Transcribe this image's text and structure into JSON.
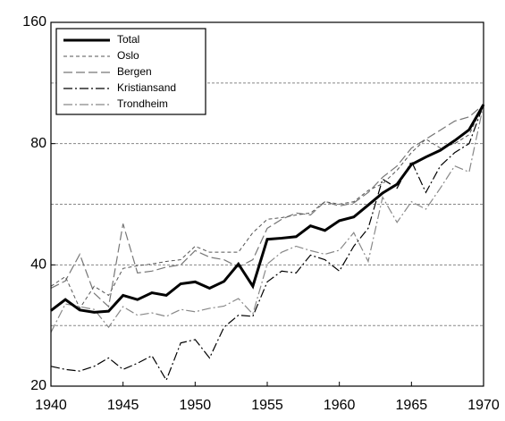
{
  "chart_data": {
    "type": "line",
    "x": [
      1940,
      1941,
      1942,
      1943,
      1944,
      1945,
      1946,
      1947,
      1948,
      1949,
      1950,
      1951,
      1952,
      1953,
      1954,
      1955,
      1956,
      1957,
      1958,
      1959,
      1960,
      1961,
      1962,
      1963,
      1964,
      1965,
      1966,
      1967,
      1968,
      1969,
      1970
    ],
    "series": [
      {
        "name": "Total",
        "color": "#000000",
        "style": "solid",
        "linewidth": 3,
        "values": [
          30.8,
          32.8,
          30.9,
          30.5,
          30.7,
          33.6,
          32.8,
          34.1,
          33.6,
          35.9,
          36.3,
          35.0,
          36.4,
          40.2,
          35.4,
          46.3,
          46.6,
          47.0,
          50.0,
          48.7,
          51.5,
          52.6,
          56.3,
          60.3,
          63.4,
          71.0,
          74.1,
          77.0,
          81.4,
          86.6,
          100
        ]
      },
      {
        "name": "Oslo",
        "color": "#555555",
        "style": "dash",
        "linewidth": 1,
        "values": [
          35.4,
          37.4,
          31.2,
          35.4,
          33.6,
          39.2,
          39.8,
          40.2,
          40.8,
          41.2,
          44.5,
          43.0,
          43.0,
          43.0,
          48.1,
          51.9,
          52.4,
          53.2,
          53.8,
          57.4,
          56.6,
          57.4,
          61.2,
          63.6,
          68.7,
          76.0,
          82.1,
          78.0,
          80.0,
          84.2,
          100
        ]
      },
      {
        "name": "Bergen",
        "color": "#777777",
        "style": "longdash",
        "linewidth": 1.2,
        "values": [
          35.0,
          36.5,
          42.5,
          34.0,
          31.5,
          50.6,
          38.2,
          38.6,
          39.5,
          40.0,
          43.4,
          41.8,
          41.2,
          39.5,
          41.2,
          49.3,
          51.9,
          53.8,
          53.2,
          57.4,
          56.0,
          57.0,
          60.5,
          66.0,
          70.4,
          78.0,
          82.1,
          86.4,
          91.0,
          93.2,
          100
        ]
      },
      {
        "name": "Kristiansand",
        "color": "#000000",
        "style": "dashdot",
        "linewidth": 1.2,
        "values": [
          22.4,
          22.0,
          21.8,
          22.4,
          23.5,
          22.0,
          22.8,
          23.8,
          20.7,
          25.6,
          26.1,
          23.5,
          28.0,
          30.0,
          29.8,
          36.3,
          38.6,
          38.2,
          42.3,
          41.2,
          38.6,
          44.5,
          49.3,
          65.3,
          62.0,
          72.3,
          60.5,
          70.4,
          76.0,
          80.0,
          100
        ]
      },
      {
        "name": "Trondheim",
        "color": "#888888",
        "style": "dashdot",
        "linewidth": 1.2,
        "values": [
          27.2,
          32.0,
          31.5,
          31.0,
          28.0,
          31.5,
          30.0,
          30.4,
          29.8,
          31.0,
          30.6,
          31.2,
          31.6,
          33.0,
          30.2,
          40.2,
          43.0,
          44.5,
          43.4,
          42.5,
          43.5,
          48.1,
          40.8,
          58.9,
          51.0,
          57.4,
          55.0,
          62.0,
          70.4,
          68.0,
          100
        ]
      }
    ],
    "xlim": [
      1940,
      1970
    ],
    "xticks": [
      1940,
      1945,
      1950,
      1955,
      1960,
      1965,
      1970
    ],
    "ylim": [
      20,
      160
    ],
    "yticks": [
      20,
      40,
      80,
      160
    ],
    "ygrid": [
      28.28,
      40,
      56.57,
      80,
      113.14
    ],
    "ylog": true,
    "grid": true,
    "legend": "upper left"
  }
}
